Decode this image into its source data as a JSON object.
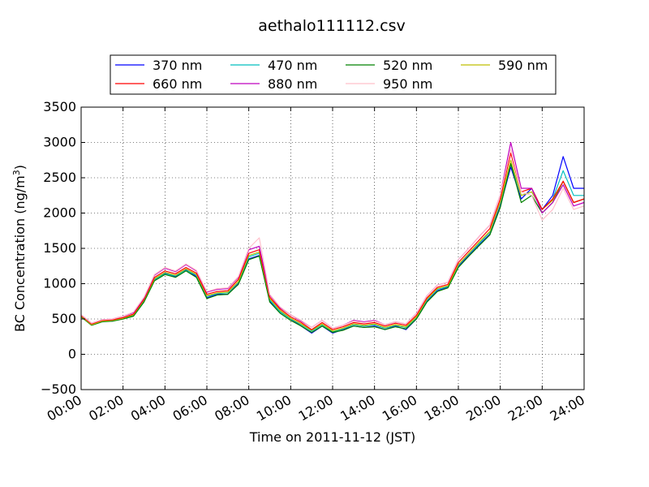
{
  "chart_data": {
    "type": "line",
    "title": "aethalo111112.csv",
    "xlabel": "Time on 2011-11-12 (JST)",
    "ylabel": "BC Concentration (ng/m",
    "ylabel_superscript": "3",
    "ylabel_close": ")",
    "xlim": [
      0,
      24
    ],
    "ylim": [
      -500,
      3500
    ],
    "grid": true,
    "legend_position": "top",
    "x_ticks": [
      {
        "value": 0,
        "label": "00:00"
      },
      {
        "value": 2,
        "label": "02:00"
      },
      {
        "value": 4,
        "label": "04:00"
      },
      {
        "value": 6,
        "label": "06:00"
      },
      {
        "value": 8,
        "label": "08:00"
      },
      {
        "value": 10,
        "label": "10:00"
      },
      {
        "value": 12,
        "label": "12:00"
      },
      {
        "value": 14,
        "label": "14:00"
      },
      {
        "value": 16,
        "label": "16:00"
      },
      {
        "value": 18,
        "label": "18:00"
      },
      {
        "value": 20,
        "label": "20:00"
      },
      {
        "value": 22,
        "label": "22:00"
      },
      {
        "value": 24,
        "label": "24:00"
      }
    ],
    "y_ticks": [
      {
        "value": -500,
        "label": "−500"
      },
      {
        "value": 0,
        "label": "0"
      },
      {
        "value": 500,
        "label": "500"
      },
      {
        "value": 1000,
        "label": "1000"
      },
      {
        "value": 1500,
        "label": "1500"
      },
      {
        "value": 2000,
        "label": "2000"
      },
      {
        "value": 2500,
        "label": "2500"
      },
      {
        "value": 3000,
        "label": "3000"
      },
      {
        "value": 3500,
        "label": "3500"
      }
    ],
    "x": [
      0,
      0.5,
      1,
      1.5,
      2,
      2.5,
      3,
      3.5,
      4,
      4.5,
      5,
      5.5,
      6,
      6.5,
      7,
      7.5,
      8,
      8.5,
      9,
      9.5,
      10,
      10.5,
      11,
      11.5,
      12,
      12.5,
      13,
      13.5,
      14,
      14.5,
      15,
      15.5,
      16,
      16.5,
      17,
      17.5,
      18,
      18.5,
      19,
      19.5,
      20,
      20.5,
      21,
      21.5,
      22,
      22.5,
      23,
      23.5,
      24
    ],
    "series": [
      {
        "name": "370 nm",
        "color": "#0000ff",
        "values": [
          550,
          420,
          480,
          470,
          520,
          560,
          750,
          1050,
          1150,
          1100,
          1200,
          1100,
          800,
          850,
          850,
          1000,
          1350,
          1400,
          750,
          600,
          500,
          400,
          300,
          400,
          300,
          350,
          400,
          380,
          400,
          350,
          400,
          350,
          500,
          750,
          900,
          950,
          1250,
          1400,
          1550,
          1700,
          2100,
          2650,
          2200,
          2350,
          2050,
          2250,
          2800,
          2350,
          2350
        ]
      },
      {
        "name": "470 nm",
        "color": "#00bfbf",
        "values": [
          540,
          430,
          470,
          480,
          510,
          550,
          760,
          1060,
          1140,
          1110,
          1190,
          1120,
          820,
          860,
          870,
          1020,
          1380,
          1430,
          770,
          600,
          500,
          420,
          330,
          420,
          320,
          360,
          420,
          400,
          420,
          370,
          410,
          380,
          520,
          770,
          920,
          960,
          1260,
          1420,
          1570,
          1730,
          2150,
          2700,
          2250,
          2300,
          2050,
          2200,
          2600,
          2250,
          2250
        ]
      },
      {
        "name": "520 nm",
        "color": "#008000",
        "values": [
          530,
          410,
          460,
          470,
          500,
          540,
          740,
          1040,
          1130,
          1090,
          1180,
          1090,
          790,
          840,
          850,
          990,
          1340,
          1390,
          740,
          580,
          480,
          400,
          310,
          400,
          310,
          340,
          400,
          380,
          390,
          350,
          390,
          360,
          500,
          740,
          890,
          940,
          1230,
          1390,
          1540,
          1690,
          2080,
          2700,
          2150,
          2250,
          2000,
          2150,
          2450,
          2150,
          2200
        ]
      },
      {
        "name": "590 nm",
        "color": "#bfbf00",
        "values": [
          540,
          420,
          470,
          480,
          510,
          560,
          770,
          1070,
          1160,
          1120,
          1210,
          1130,
          830,
          870,
          880,
          1030,
          1400,
          1450,
          790,
          620,
          510,
          430,
          340,
          430,
          330,
          370,
          430,
          410,
          430,
          380,
          420,
          390,
          530,
          780,
          930,
          970,
          1270,
          1430,
          1590,
          1740,
          2160,
          2750,
          2250,
          2300,
          2050,
          2180,
          2450,
          2150,
          2200
        ]
      },
      {
        "name": "660 nm",
        "color": "#ff0000",
        "values": [
          550,
          430,
          480,
          490,
          520,
          570,
          780,
          1090,
          1180,
          1140,
          1230,
          1150,
          850,
          890,
          900,
          1060,
          1430,
          1480,
          810,
          640,
          530,
          450,
          350,
          450,
          350,
          390,
          450,
          430,
          450,
          400,
          440,
          410,
          550,
          800,
          950,
          990,
          1300,
          1460,
          1620,
          1780,
          2200,
          2850,
          2300,
          2350,
          2050,
          2200,
          2450,
          2150,
          2200
        ]
      },
      {
        "name": "880 nm",
        "color": "#bf00bf",
        "values": [
          560,
          440,
          490,
          500,
          540,
          590,
          800,
          1120,
          1220,
          1170,
          1270,
          1180,
          880,
          920,
          930,
          1090,
          1480,
          1530,
          840,
          660,
          560,
          470,
          380,
          480,
          370,
          410,
          480,
          460,
          480,
          420,
          460,
          430,
          580,
          830,
          980,
          1020,
          1340,
          1500,
          1670,
          1830,
          2260,
          3000,
          2350,
          2350,
          2000,
          2150,
          2400,
          2100,
          2150
        ]
      },
      {
        "name": "950 nm",
        "color": "#ffc0cb",
        "values": [
          560,
          440,
          490,
          500,
          540,
          600,
          810,
          1130,
          1230,
          1180,
          1280,
          1190,
          890,
          930,
          940,
          1100,
          1500,
          1650,
          850,
          670,
          560,
          480,
          380,
          480,
          370,
          410,
          470,
          450,
          470,
          420,
          460,
          430,
          580,
          830,
          980,
          1020,
          1340,
          1500,
          1670,
          1830,
          2260,
          2900,
          2300,
          2250,
          1900,
          2050,
          2350,
          2050,
          2100
        ]
      }
    ]
  }
}
